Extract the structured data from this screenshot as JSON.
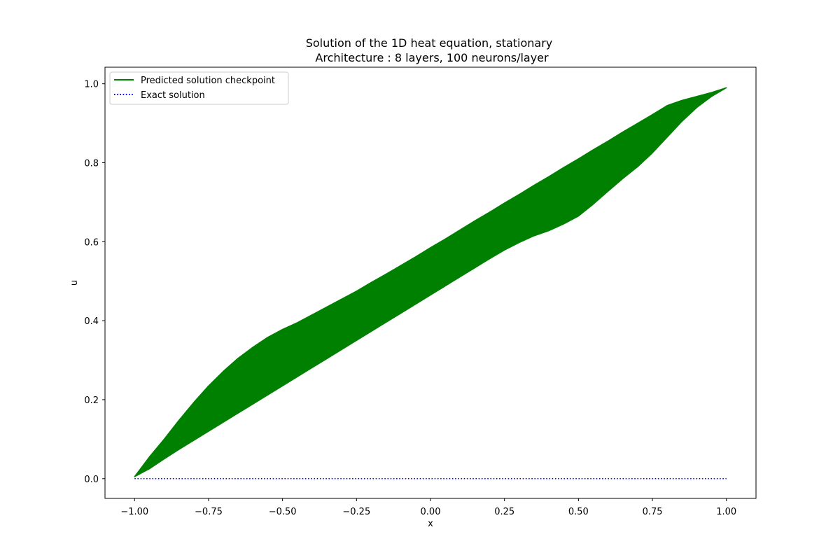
{
  "chart_data": {
    "type": "line",
    "title": "Solution of the 1D heat equation, stationary",
    "subtitle": "Architecture : 8 layers, 100 neurons/layer",
    "xlabel": "x",
    "ylabel": "u",
    "xlim": [
      -1.1,
      1.1
    ],
    "ylim": [
      -0.05,
      1.042
    ],
    "x_ticks": [
      -1.0,
      -0.75,
      -0.5,
      -0.25,
      0.0,
      0.25,
      0.5,
      0.75,
      1.0
    ],
    "x_tick_labels": [
      "−1.00",
      "−0.75",
      "−0.50",
      "−0.25",
      "0.00",
      "0.25",
      "0.50",
      "0.75",
      "1.00"
    ],
    "y_ticks": [
      0.0,
      0.2,
      0.4,
      0.6,
      0.8,
      1.0
    ],
    "y_tick_labels": [
      "0.0",
      "0.2",
      "0.4",
      "0.6",
      "0.8",
      "1.0"
    ],
    "grid": false,
    "legend_position": "upper-left",
    "series": [
      {
        "name": "Predicted solution checkpoint",
        "color": "#008000",
        "style": "solid",
        "render": "band",
        "x": [
          -1.0,
          -0.95,
          -0.9,
          -0.85,
          -0.8,
          -0.75,
          -0.7,
          -0.65,
          -0.6,
          -0.55,
          -0.5,
          -0.45,
          -0.4,
          -0.35,
          -0.3,
          -0.25,
          -0.2,
          -0.15,
          -0.1,
          -0.05,
          0.0,
          0.05,
          0.1,
          0.15,
          0.2,
          0.25,
          0.3,
          0.35,
          0.4,
          0.45,
          0.5,
          0.55,
          0.6,
          0.65,
          0.7,
          0.75,
          0.8,
          0.85,
          0.9,
          0.95,
          1.0
        ],
        "upper": [
          0.005,
          0.055,
          0.1,
          0.148,
          0.193,
          0.235,
          0.272,
          0.305,
          0.333,
          0.358,
          0.378,
          0.395,
          0.415,
          0.435,
          0.455,
          0.475,
          0.497,
          0.518,
          0.54,
          0.562,
          0.585,
          0.607,
          0.63,
          0.653,
          0.675,
          0.698,
          0.72,
          0.743,
          0.765,
          0.788,
          0.81,
          0.833,
          0.855,
          0.878,
          0.9,
          0.922,
          0.945,
          0.958,
          0.968,
          0.978,
          0.99
        ],
        "lower": [
          0.005,
          0.025,
          0.05,
          0.074,
          0.097,
          0.12,
          0.143,
          0.166,
          0.189,
          0.212,
          0.235,
          0.258,
          0.281,
          0.304,
          0.327,
          0.35,
          0.373,
          0.396,
          0.419,
          0.442,
          0.465,
          0.488,
          0.511,
          0.534,
          0.557,
          0.579,
          0.598,
          0.615,
          0.628,
          0.645,
          0.665,
          0.695,
          0.728,
          0.76,
          0.79,
          0.825,
          0.865,
          0.905,
          0.94,
          0.968,
          0.99
        ]
      },
      {
        "name": "Exact solution",
        "color": "#0000ff",
        "style": "dotted",
        "x": [
          -1.0,
          1.0
        ],
        "y": [
          0.0,
          0.0
        ]
      }
    ]
  }
}
